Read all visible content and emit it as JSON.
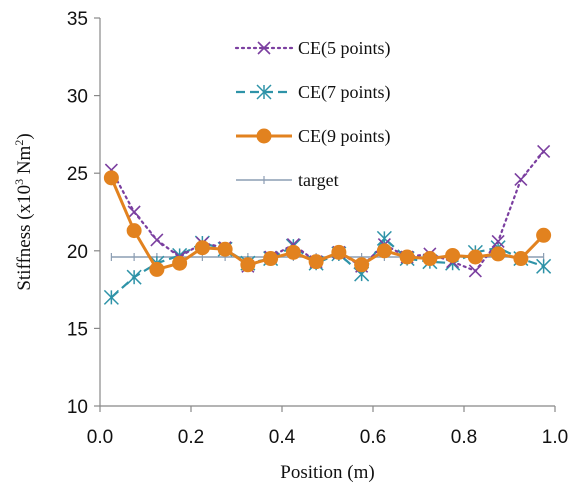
{
  "chart_data": {
    "type": "line",
    "title": "",
    "xlabel": "Position (m)",
    "ylabel": "Stiffness (x10³ Nm²)",
    "ylabel_parts": {
      "main": "Stiffness  (x10",
      "exp1": "3",
      "mid": " Nm",
      "exp2": "2",
      "end": ")"
    },
    "xlim": [
      0.0,
      1.0
    ],
    "ylim": [
      10,
      35
    ],
    "xticks": [
      0.0,
      0.2,
      0.4,
      0.6,
      0.8,
      1.0
    ],
    "xtick_labels": [
      "0.0",
      "0.2",
      "0.4",
      "0.6",
      "0.8",
      "1.0"
    ],
    "yticks": [
      10,
      15,
      20,
      25,
      30,
      35
    ],
    "ytick_labels": [
      "10",
      "15",
      "20",
      "25",
      "30",
      "35"
    ],
    "grid": false,
    "legend_position": "top-center",
    "series": [
      {
        "name": "CE(5 points)",
        "color": "#7B3FA0",
        "line": "dotted",
        "marker": "x",
        "x": [
          0.025,
          0.075,
          0.125,
          0.175,
          0.225,
          0.275,
          0.325,
          0.375,
          0.425,
          0.475,
          0.525,
          0.575,
          0.625,
          0.675,
          0.725,
          0.775,
          0.825,
          0.875,
          0.925,
          0.975
        ],
        "y": [
          25.2,
          22.5,
          20.7,
          19.6,
          20.5,
          20.2,
          19.0,
          19.6,
          20.4,
          19.3,
          19.9,
          19.0,
          20.4,
          19.6,
          19.8,
          19.3,
          18.7,
          20.6,
          24.6,
          26.4
        ]
      },
      {
        "name": "CE(7 points)",
        "color": "#2E93A8",
        "line": "dashed",
        "marker": "asterisk",
        "x": [
          0.025,
          0.075,
          0.125,
          0.175,
          0.225,
          0.275,
          0.325,
          0.375,
          0.425,
          0.475,
          0.525,
          0.575,
          0.625,
          0.675,
          0.725,
          0.775,
          0.825,
          0.875,
          0.925,
          0.975
        ],
        "y": [
          17.0,
          18.3,
          19.2,
          19.7,
          20.5,
          20.1,
          19.2,
          19.5,
          20.3,
          19.2,
          19.8,
          18.5,
          20.8,
          19.5,
          19.3,
          19.2,
          19.9,
          20.2,
          19.5,
          19.0
        ]
      },
      {
        "name": "CE(9 points)",
        "color": "#E2821F",
        "line": "solid",
        "marker": "circle",
        "x": [
          0.025,
          0.075,
          0.125,
          0.175,
          0.225,
          0.275,
          0.325,
          0.375,
          0.425,
          0.475,
          0.525,
          0.575,
          0.625,
          0.675,
          0.725,
          0.775,
          0.825,
          0.875,
          0.925,
          0.975
        ],
        "y": [
          24.7,
          21.3,
          18.8,
          19.2,
          20.2,
          20.1,
          19.1,
          19.5,
          19.9,
          19.3,
          19.9,
          19.1,
          20.0,
          19.6,
          19.5,
          19.7,
          19.6,
          19.8,
          19.5,
          21.0
        ]
      },
      {
        "name": "target",
        "color": "#8C9DB3",
        "line": "solid",
        "marker": "plus",
        "x": [
          0.025,
          0.075,
          0.125,
          0.175,
          0.225,
          0.275,
          0.325,
          0.375,
          0.425,
          0.475,
          0.525,
          0.575,
          0.625,
          0.675,
          0.725,
          0.775,
          0.825,
          0.875,
          0.925,
          0.975
        ],
        "y": [
          19.6,
          19.6,
          19.6,
          19.6,
          19.6,
          19.6,
          19.6,
          19.6,
          19.6,
          19.6,
          19.6,
          19.6,
          19.6,
          19.6,
          19.6,
          19.6,
          19.6,
          19.6,
          19.6,
          19.6
        ]
      }
    ]
  }
}
